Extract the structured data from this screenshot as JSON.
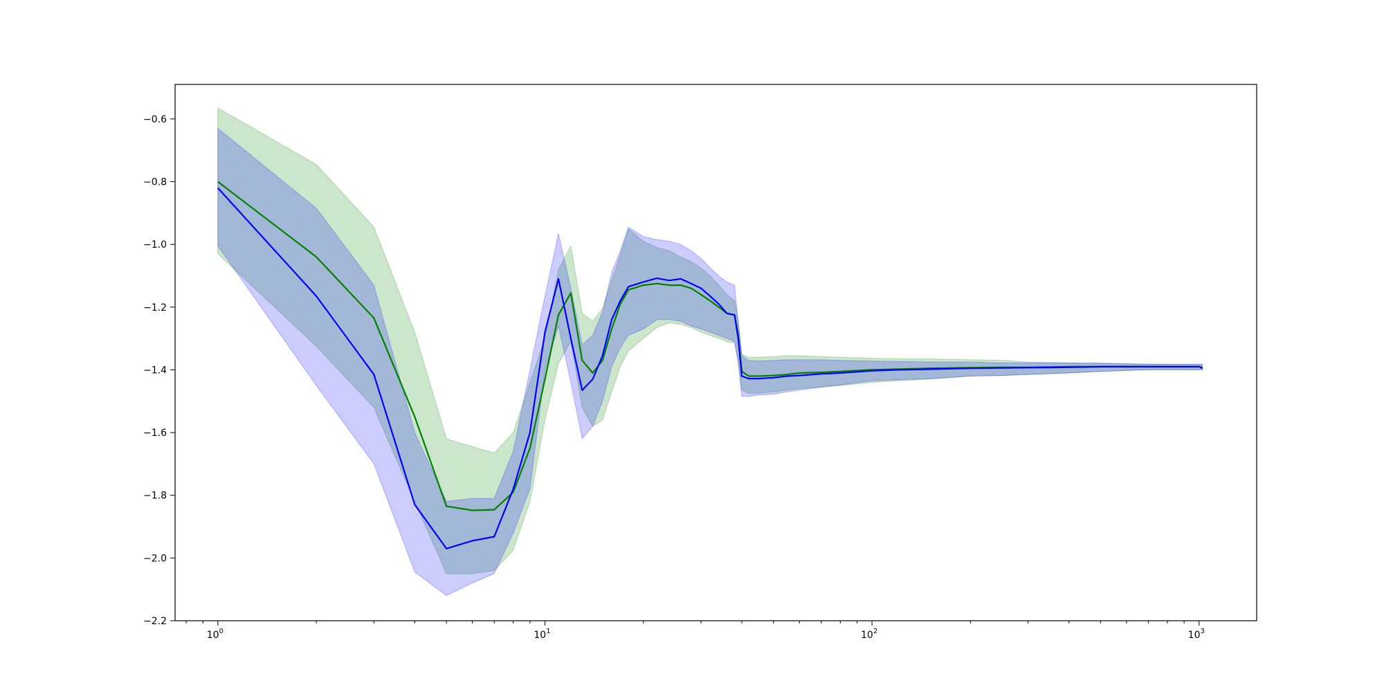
{
  "chart_data": {
    "type": "line",
    "title": "",
    "xlabel": "",
    "ylabel": "",
    "xscale": "log",
    "xlim": [
      0.74,
      1500
    ],
    "ylim": [
      -2.2,
      -0.49
    ],
    "grid": false,
    "x_ticks": [
      {
        "base": "10",
        "exp": "0",
        "value": 1
      },
      {
        "base": "10",
        "exp": "1",
        "value": 10
      },
      {
        "base": "10",
        "exp": "2",
        "value": 100
      },
      {
        "base": "10",
        "exp": "3",
        "value": 1000
      }
    ],
    "y_ticks": [
      {
        "label": "−0.6",
        "value": -0.6
      },
      {
        "label": "−0.8",
        "value": -0.8
      },
      {
        "label": "−1.0",
        "value": -1.0
      },
      {
        "label": "−1.2",
        "value": -1.2
      },
      {
        "label": "−1.4",
        "value": -1.4
      },
      {
        "label": "−1.6",
        "value": -1.6
      },
      {
        "label": "−1.8",
        "value": -1.8
      },
      {
        "label": "−2.0",
        "value": -2.0
      },
      {
        "label": "−2.2",
        "value": -2.2
      }
    ],
    "series": [
      {
        "color": "#008000",
        "band_color": "#008000",
        "band_opacity": 0.2,
        "x": [
          1,
          2,
          3,
          4,
          5,
          6,
          7,
          8,
          9,
          10,
          11,
          12,
          13,
          14,
          15,
          16,
          17,
          18,
          20,
          22,
          24,
          26,
          28,
          30,
          32,
          34,
          36,
          38,
          39,
          40,
          42,
          45,
          50,
          55,
          60,
          70,
          80,
          100,
          120,
          150,
          200,
          250,
          300,
          400,
          500,
          700,
          1000,
          1024
        ],
        "y": [
          -0.8,
          -1.04,
          -1.235,
          -1.55,
          -1.835,
          -1.848,
          -1.846,
          -1.79,
          -1.65,
          -1.43,
          -1.225,
          -1.155,
          -1.37,
          -1.41,
          -1.37,
          -1.27,
          -1.19,
          -1.145,
          -1.13,
          -1.125,
          -1.13,
          -1.13,
          -1.14,
          -1.16,
          -1.18,
          -1.2,
          -1.22,
          -1.225,
          -1.29,
          -1.405,
          -1.42,
          -1.42,
          -1.418,
          -1.415,
          -1.41,
          -1.408,
          -1.405,
          -1.4,
          -1.398,
          -1.395,
          -1.393,
          -1.392,
          -1.392,
          -1.39,
          -1.39,
          -1.39,
          -1.39,
          -1.392
        ],
        "upper": [
          -0.565,
          -0.745,
          -0.945,
          -1.28,
          -1.62,
          -1.645,
          -1.665,
          -1.6,
          -1.44,
          -1.3,
          -1.08,
          -1.005,
          -1.22,
          -1.245,
          -1.205,
          -1.115,
          -1.035,
          -0.95,
          -0.99,
          -1.01,
          -1.02,
          -1.04,
          -1.055,
          -1.075,
          -1.1,
          -1.13,
          -1.16,
          -1.18,
          -1.24,
          -1.35,
          -1.36,
          -1.36,
          -1.358,
          -1.355,
          -1.355,
          -1.358,
          -1.36,
          -1.363,
          -1.365,
          -1.365,
          -1.368,
          -1.37,
          -1.375,
          -1.378,
          -1.38,
          -1.382,
          -1.383,
          -1.383
        ],
        "lower": [
          -1.03,
          -1.325,
          -1.52,
          -1.82,
          -2.05,
          -2.05,
          -2.04,
          -1.975,
          -1.82,
          -1.56,
          -1.38,
          -1.31,
          -1.52,
          -1.58,
          -1.56,
          -1.47,
          -1.39,
          -1.34,
          -1.3,
          -1.265,
          -1.25,
          -1.255,
          -1.265,
          -1.28,
          -1.29,
          -1.3,
          -1.31,
          -1.315,
          -1.37,
          -1.465,
          -1.475,
          -1.475,
          -1.47,
          -1.465,
          -1.46,
          -1.455,
          -1.45,
          -1.44,
          -1.435,
          -1.43,
          -1.42,
          -1.418,
          -1.415,
          -1.41,
          -1.405,
          -1.4,
          -1.4,
          -1.4
        ]
      },
      {
        "color": "#0000ff",
        "band_color": "#0000ff",
        "band_opacity": 0.2,
        "x": [
          1,
          2,
          3,
          4,
          5,
          6,
          7,
          8,
          9,
          10,
          11,
          12,
          13,
          14,
          15,
          16,
          17,
          18,
          20,
          22,
          24,
          26,
          28,
          30,
          32,
          34,
          36,
          38,
          39,
          40,
          42,
          45,
          50,
          55,
          60,
          70,
          80,
          100,
          120,
          150,
          200,
          250,
          300,
          400,
          500,
          700,
          1000,
          1024
        ],
        "y": [
          -0.82,
          -1.165,
          -1.415,
          -1.83,
          -1.97,
          -1.945,
          -1.932,
          -1.78,
          -1.6,
          -1.28,
          -1.11,
          -1.3,
          -1.465,
          -1.43,
          -1.355,
          -1.24,
          -1.18,
          -1.135,
          -1.12,
          -1.108,
          -1.115,
          -1.11,
          -1.125,
          -1.14,
          -1.165,
          -1.19,
          -1.22,
          -1.225,
          -1.3,
          -1.42,
          -1.428,
          -1.428,
          -1.425,
          -1.42,
          -1.418,
          -1.413,
          -1.41,
          -1.403,
          -1.4,
          -1.398,
          -1.395,
          -1.394,
          -1.393,
          -1.392,
          -1.39,
          -1.39,
          -1.39,
          -1.395
        ],
        "upper": [
          -0.63,
          -0.885,
          -1.13,
          -1.6,
          -1.82,
          -1.81,
          -1.81,
          -1.66,
          -1.4,
          -1.165,
          -0.965,
          -1.14,
          -1.32,
          -1.29,
          -1.215,
          -1.09,
          -1.02,
          -0.945,
          -0.975,
          -0.985,
          -0.99,
          -1.0,
          -1.02,
          -1.045,
          -1.075,
          -1.1,
          -1.12,
          -1.13,
          -1.25,
          -1.355,
          -1.37,
          -1.372,
          -1.37,
          -1.368,
          -1.368,
          -1.368,
          -1.37,
          -1.372,
          -1.373,
          -1.375,
          -1.375,
          -1.378,
          -1.378,
          -1.378,
          -1.378,
          -1.382,
          -1.382,
          -1.382
        ],
        "lower": [
          -1.005,
          -1.45,
          -1.7,
          -2.045,
          -2.12,
          -2.08,
          -2.05,
          -1.92,
          -1.78,
          -1.4,
          -1.26,
          -1.44,
          -1.62,
          -1.58,
          -1.5,
          -1.39,
          -1.33,
          -1.29,
          -1.27,
          -1.24,
          -1.24,
          -1.245,
          -1.26,
          -1.27,
          -1.28,
          -1.29,
          -1.3,
          -1.31,
          -1.38,
          -1.485,
          -1.485,
          -1.48,
          -1.478,
          -1.47,
          -1.465,
          -1.455,
          -1.448,
          -1.435,
          -1.432,
          -1.428,
          -1.42,
          -1.418,
          -1.415,
          -1.41,
          -1.405,
          -1.4,
          -1.4,
          -1.4
        ]
      }
    ]
  }
}
